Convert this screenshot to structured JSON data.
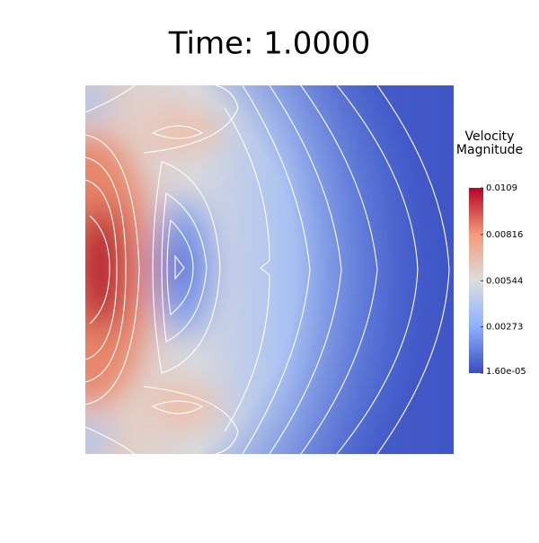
{
  "chart_data": {
    "type": "contour",
    "title": "Time: 1.0000",
    "colorbar_title": [
      "Velocity",
      "Magnitude"
    ],
    "clim": [
      1.6e-05,
      0.0109
    ],
    "colorbar_ticks": [
      {
        "value": 1.6e-05,
        "label": "1.60e-05"
      },
      0.00273,
      0.00544,
      0.00816,
      0.0109
    ],
    "colormap": [
      "#3b4cc0",
      "#8db0fe",
      "#dddddd",
      "#f49a7b",
      "#b40426"
    ]
  }
}
